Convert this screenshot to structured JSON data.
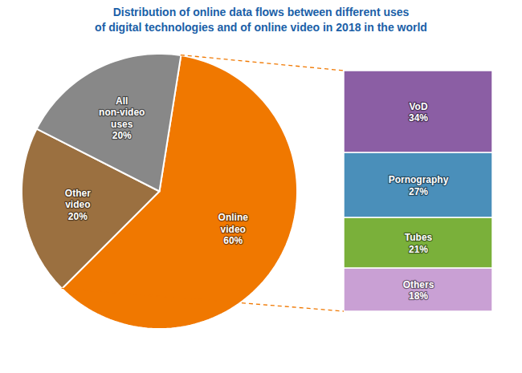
{
  "chart_data": [
    {
      "type": "pie",
      "title": "Distribution of online data flows between different uses\nof digital technologies and of online video in 2018 in the world",
      "categories": [
        "Online\nvideo",
        "Other\nvideo",
        "All\nnon-video\nuses"
      ],
      "values": [
        60,
        20,
        20
      ],
      "value_labels": [
        "60%",
        "20%",
        "20%"
      ],
      "colors": [
        "#f07800",
        "#9b7040",
        "#888888"
      ],
      "data_labels": true
    },
    {
      "type": "bar",
      "stacked": true,
      "categories": [
        "VoD",
        "Pornography",
        "Tubes",
        "Others"
      ],
      "values": [
        34,
        27,
        21,
        18
      ],
      "value_labels": [
        "34%",
        "27%",
        "21%",
        "18%"
      ],
      "colors": [
        "#8B5EA4",
        "#4a8fba",
        "#7ab03a",
        "#c9a0d4"
      ],
      "data_labels": true,
      "tick_labels": false
    }
  ]
}
